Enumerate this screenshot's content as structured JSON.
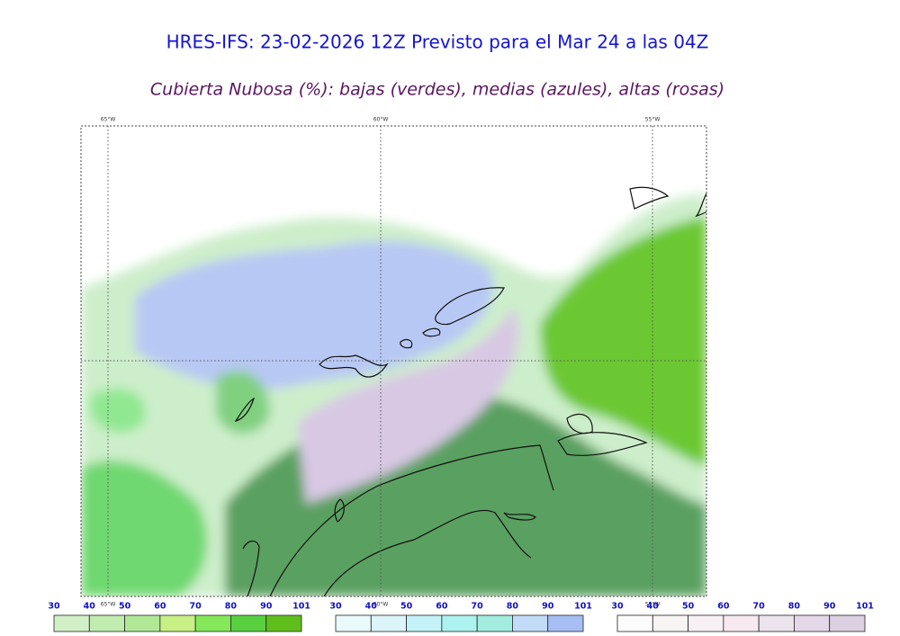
{
  "header": {
    "title": "HRES-IFS: 23-02-2026 12Z Previsto para el Mar 24 a las 04Z",
    "subtitle": "Cubierta Nubosa (%): bajas (verdes), medias (azules), altas (rosas)"
  },
  "map": {
    "lon_labels_top": [
      "65°W",
      "60°W",
      "55°W"
    ],
    "lon_labels_bottom": [
      "65°W",
      "60°W",
      "55°W"
    ]
  },
  "legends": [
    {
      "ticks": [
        30,
        40,
        50,
        60,
        70,
        80,
        90,
        101
      ],
      "colors": [
        "#d2f0c8",
        "#c0ecb0",
        "#b0e898",
        "#c8f084",
        "#84e85a",
        "#58d040",
        "#60be1c"
      ]
    },
    {
      "ticks": [
        30,
        40,
        50,
        60,
        70,
        80,
        90,
        101
      ],
      "colors": [
        "#eafafc",
        "#dcf4fa",
        "#c4f2f6",
        "#acf2ee",
        "#a2ece0",
        "#c2dcf8",
        "#a6bef4"
      ]
    },
    {
      "ticks": [
        30,
        40,
        50,
        60,
        70,
        80,
        90,
        101
      ],
      "colors": [
        "#fcfcfc",
        "#f8f4f4",
        "#f8f0f4",
        "#f8e8f0",
        "#ece4ec",
        "#e4d8e8",
        "#dcd0e2"
      ]
    }
  ]
}
